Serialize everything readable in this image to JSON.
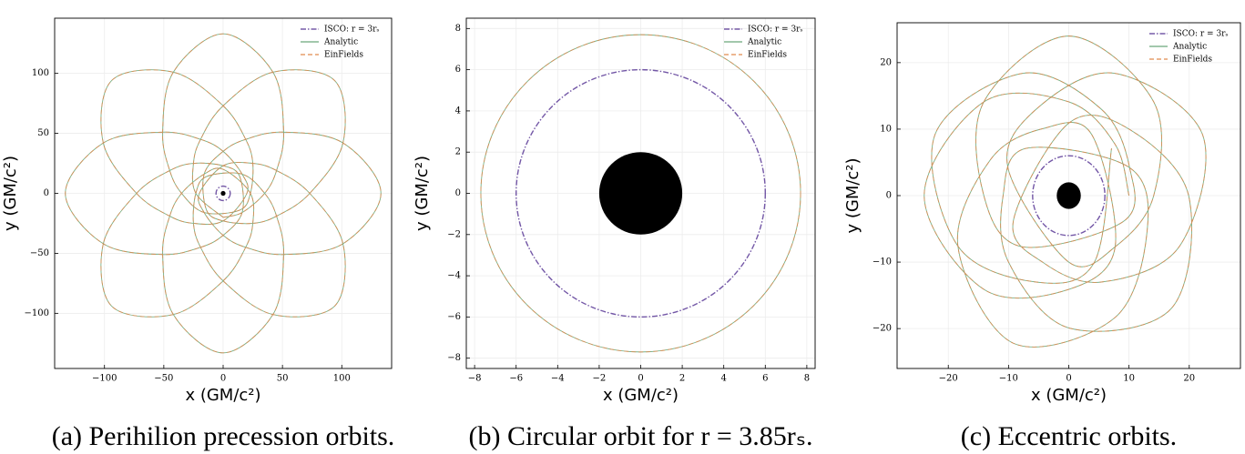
{
  "chart_data": [
    {
      "type": "line",
      "caption": "(a) Perihilion precession orbits.",
      "x_label": "x (GM/c²)",
      "y_label": "y (GM/c²)",
      "xlim": [
        -142,
        142
      ],
      "ylim": [
        -146,
        146
      ],
      "xticks": [
        {
          "value": -100,
          "label": "−100"
        },
        {
          "value": -50,
          "label": "−50"
        },
        0,
        50,
        100
      ],
      "yticks": [
        {
          "value": -100,
          "label": "−100"
        },
        {
          "value": -50,
          "label": "−50"
        },
        0,
        50,
        100
      ],
      "grid": true,
      "legend": "upper right",
      "black_hole_radius": 2,
      "black_hole_color": "#000000",
      "series": [
        {
          "name": "ISCO: r = 3rₛ",
          "color": "#5b3a96",
          "linestyle": "dashdot",
          "radius": 6
        },
        {
          "name": "Analytic",
          "color": "#6aa87a",
          "linestyle": "solid",
          "x": [
            0,
            16,
            35,
            45,
            51,
            42,
            0,
            -42,
            -51,
            -45,
            -35,
            -16,
            14,
            23,
            25,
            19,
            0,
            -42,
            -94,
            -101,
            -73,
            -45,
            -25,
            0,
            20,
            16,
            0,
            -19,
            -51,
            -101,
            -133,
            -101,
            -51,
            -19,
            0,
            16,
            14,
            0,
            -25,
            -45,
            -73,
            -101,
            -94,
            -42,
            0,
            19,
            25,
            23,
            0,
            -16,
            -35,
            -45,
            -51,
            -42,
            0,
            42,
            51,
            45,
            35,
            16,
            -14,
            -23,
            -25,
            -19,
            0,
            42,
            94,
            101,
            73,
            45,
            25,
            0,
            -20,
            -16,
            0,
            19,
            51,
            101,
            133,
            101,
            51,
            19,
            0,
            -16,
            -14,
            0,
            25,
            45,
            73,
            101,
            94,
            42,
            0,
            -19,
            -25,
            -23,
            0
          ],
          "y": [
            -20,
            -16,
            0,
            19,
            51,
            101,
            133,
            101,
            51,
            19,
            0,
            -16,
            -14,
            0,
            25,
            45,
            73,
            101,
            94,
            42,
            0,
            -19,
            -25,
            -23,
            0,
            16,
            35,
            45,
            51,
            42,
            0,
            -42,
            -51,
            -45,
            -35,
            -16,
            14,
            23,
            25,
            19,
            0,
            -42,
            -94,
            -101,
            -73,
            -45,
            -25,
            0,
            20,
            16,
            0,
            -19,
            -51,
            -101,
            -133,
            -101,
            -51,
            -19,
            0,
            16,
            14,
            0,
            -25,
            -45,
            -73,
            -101,
            -94,
            -42,
            0,
            19,
            25,
            23,
            0,
            -16,
            -35,
            -45,
            -51,
            -42,
            0,
            42,
            51,
            45,
            35,
            16,
            -14,
            -23,
            -25,
            -19,
            0,
            42,
            94,
            101,
            73,
            45,
            25,
            0,
            -20
          ]
        },
        {
          "name": "EinFields",
          "color": "#e08a4e",
          "linestyle": "dashed",
          "x": [
            0,
            16,
            35,
            45,
            51,
            42,
            0,
            -42,
            -51,
            -45,
            -35,
            -16,
            14,
            23,
            25,
            19,
            0,
            -42,
            -94,
            -101,
            -73,
            -45,
            -25,
            0,
            20,
            16,
            0,
            -19,
            -51,
            -101,
            -133,
            -101,
            -51,
            -19,
            0,
            16,
            14,
            0,
            -25,
            -45,
            -73,
            -101,
            -94,
            -42,
            0,
            19,
            25,
            23,
            0,
            -16,
            -35,
            -45,
            -51,
            -42,
            0,
            42,
            51,
            45,
            35,
            16,
            -14,
            -23,
            -25,
            -19,
            0,
            42,
            94,
            101,
            73,
            45,
            25,
            0,
            -20,
            -16,
            0,
            19,
            51,
            101,
            133,
            101,
            51,
            19,
            0,
            -16,
            -14,
            0,
            25,
            45,
            73,
            101,
            94,
            42,
            0,
            -19,
            -25,
            -23,
            0
          ],
          "y": [
            -20,
            -16,
            0,
            19,
            51,
            101,
            133,
            101,
            51,
            19,
            0,
            -16,
            -14,
            0,
            25,
            45,
            73,
            101,
            94,
            42,
            0,
            -19,
            -25,
            -23,
            0,
            16,
            35,
            45,
            51,
            42,
            0,
            -42,
            -51,
            -45,
            -35,
            -16,
            14,
            23,
            25,
            19,
            0,
            -42,
            -94,
            -101,
            -73,
            -45,
            -25,
            0,
            20,
            16,
            0,
            -19,
            -51,
            -101,
            -133,
            -101,
            -51,
            -19,
            0,
            16,
            14,
            0,
            -25,
            -45,
            -73,
            -101,
            -94,
            -42,
            0,
            19,
            25,
            23,
            0,
            -16,
            -35,
            -45,
            -51,
            -42,
            0,
            42,
            51,
            45,
            35,
            16,
            -14,
            -23,
            -25,
            -19,
            0,
            42,
            94,
            101,
            73,
            45,
            25,
            0,
            -20
          ]
        }
      ]
    },
    {
      "type": "line",
      "caption": "(b) Circular orbit for r = 3.85rₛ.",
      "x_label": "x (GM/c²)",
      "y_label": "y (GM/c²)",
      "xlim": [
        -8.4,
        8.4
      ],
      "ylim": [
        -8.5,
        8.5
      ],
      "xticks": [
        {
          "value": -8,
          "label": "−8"
        },
        {
          "value": -6,
          "label": "−6"
        },
        {
          "value": -4,
          "label": "−4"
        },
        {
          "value": -2,
          "label": "−2"
        },
        0,
        2,
        4,
        6,
        8
      ],
      "yticks": [
        {
          "value": -8,
          "label": "−8"
        },
        {
          "value": -6,
          "label": "−6"
        },
        {
          "value": -4,
          "label": "−4"
        },
        {
          "value": -2,
          "label": "−2"
        },
        0,
        2,
        4,
        6,
        8
      ],
      "grid": true,
      "legend": "upper right",
      "black_hole_radius": 2,
      "black_hole_color": "#000000",
      "series": [
        {
          "name": "ISCO: r = 3rₛ",
          "color": "#5b3a96",
          "linestyle": "dashdot",
          "radius": 6
        },
        {
          "name": "Analytic",
          "color": "#6aa87a",
          "linestyle": "solid",
          "radius": 7.7
        },
        {
          "name": "EinFields",
          "color": "#e08a4e",
          "linestyle": "dashed",
          "radius": 7.7
        }
      ]
    },
    {
      "type": "line",
      "caption": "(c) Eccentric orbits.",
      "x_label": "x (GM/c²)",
      "y_label": "y (GM/c²)",
      "xlim": [
        -28.5,
        28.5
      ],
      "ylim": [
        -26,
        26
      ],
      "xticks": [
        {
          "value": -20,
          "label": "−20"
        },
        {
          "value": -10,
          "label": "−10"
        },
        0,
        10,
        20
      ],
      "yticks": [
        {
          "value": -20,
          "label": "−20"
        },
        {
          "value": -10,
          "label": "−10"
        },
        0,
        10,
        20
      ],
      "grid": true,
      "legend": "upper right",
      "black_hole_radius": 2,
      "black_hole_color": "#000000",
      "series": [
        {
          "name": "ISCO: r = 3rₛ",
          "color": "#5b3a96",
          "linestyle": "dashdot",
          "radius": 6
        },
        {
          "name": "Analytic",
          "color": "#6aa87a",
          "linestyle": "solid",
          "x": [
            10,
            7.7,
            0,
            -14.1,
            -24,
            -14.1,
            0,
            7.7,
            3.8,
            -4.2,
            -13,
            -18.4,
            -9.2,
            7.6,
            13,
            10.1,
            -7.1,
            -10.9,
            -10,
            0,
            17,
            19.9,
            10,
            0,
            -9.2,
            -4.2,
            5.4,
            18.4,
            22.2,
            7.6,
            -5.4,
            -10.1,
            0,
            7.7,
            14.1,
            14.1,
            0,
            -14.1,
            -14.1,
            -7.7,
            9.2,
            10.1,
            5.4,
            -7.6,
            -22.2,
            -18.4,
            -5.4,
            4.2,
            7.1
          ],
          "y": [
            0,
            7.7,
            14.1,
            14.1,
            0,
            -14.1,
            -14.1,
            -7.7,
            9.2,
            10.1,
            5.4,
            -7.6,
            -22.2,
            -18.4,
            -5.4,
            4.2,
            7.1,
            0,
            -10,
            -19.9,
            -17,
            0,
            10,
            10.9,
            -3.8,
            -10.1,
            -13,
            -7.6,
            9.2,
            18.4,
            13,
            4.2,
            -10,
            -7.7,
            0,
            14.1,
            24,
            14.1,
            0,
            -7.7,
            -3.8,
            4.2,
            13,
            18.4,
            9.2,
            -7.6,
            -13,
            -10.1,
            7.1
          ]
        },
        {
          "name": "EinFields",
          "color": "#e08a4e",
          "linestyle": "dashed",
          "x": [
            10,
            7.7,
            0,
            -14.1,
            -24,
            -14.1,
            0,
            7.7,
            3.8,
            -4.2,
            -13,
            -18.4,
            -9.2,
            7.6,
            13,
            10.1,
            -7.1,
            -10.9,
            -10,
            0,
            17,
            19.9,
            10,
            0,
            -9.2,
            -4.2,
            5.4,
            18.4,
            22.2,
            7.6,
            -5.4,
            -10.1,
            0,
            7.7,
            14.1,
            14.1,
            0,
            -14.1,
            -14.1,
            -7.7,
            9.2,
            10.1,
            5.4,
            -7.6,
            -22.2,
            -18.4,
            -5.4,
            4.2,
            7.1
          ],
          "y": [
            0,
            7.7,
            14.1,
            14.1,
            0,
            -14.1,
            -14.1,
            -7.7,
            9.2,
            10.1,
            5.4,
            -7.6,
            -22.2,
            -18.4,
            -5.4,
            4.2,
            7.1,
            0,
            -10,
            -19.9,
            -17,
            0,
            10,
            10.9,
            -3.8,
            -10.1,
            -13,
            -7.6,
            9.2,
            18.4,
            13,
            4.2,
            -10,
            -7.7,
            0,
            14.1,
            24,
            14.1,
            0,
            -7.7,
            -3.8,
            4.2,
            13,
            18.4,
            9.2,
            -7.6,
            -13,
            -10.1,
            7.1
          ]
        }
      ]
    }
  ]
}
